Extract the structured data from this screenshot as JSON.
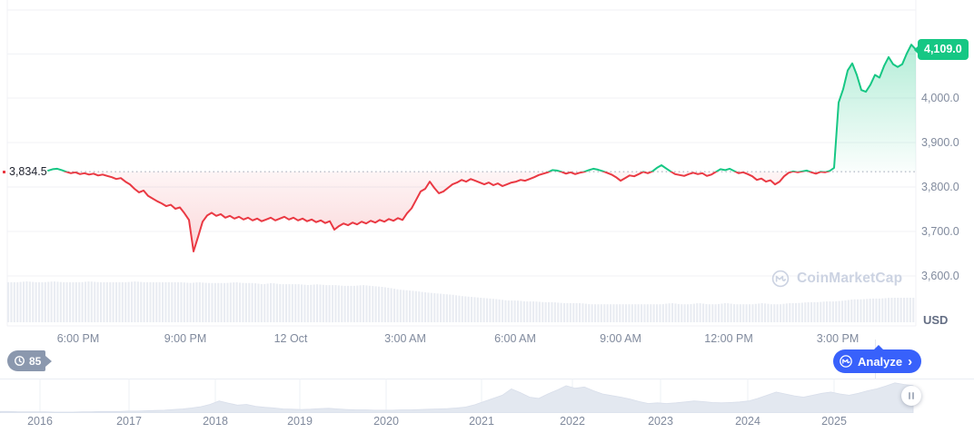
{
  "chart": {
    "baseline_label": "3,834.5",
    "last_price_label": "4,109.0",
    "unit_label": "USD"
  },
  "watermark": {
    "text": "CoinMarketCap"
  },
  "footer": {
    "score": "85",
    "analyze_label": "Analyze",
    "chevron": "›"
  },
  "colors": {
    "up": "#16c784",
    "down": "#ea3943",
    "accent_blue": "#3861fb",
    "axis_text": "#808a9d",
    "grid": "#f0f2f6",
    "volume": "#e9ecf2",
    "mini_area": "#e3e8f0",
    "watermark_text": "#ccd3e2",
    "score_badge": "#8b98ae",
    "baseline_dotted": "#9aa3b4"
  },
  "chart_data": {
    "type": "line",
    "quote_currency": "USD",
    "baseline": 3834.5,
    "last_price": 4109.0,
    "grid": true,
    "y_axis": {
      "tick_values": [
        4000.0,
        3900.0,
        3800.0,
        3700.0,
        3600.0
      ],
      "tick_labels": [
        "4,000.0",
        "3,900.0",
        "3,800.0",
        "3,700.0",
        "3,600.0"
      ],
      "implied_range": [
        3480,
        4220
      ]
    },
    "x_axis": {
      "tick_labels": [
        "6:00 PM",
        "9:00 PM",
        "12 Oct",
        "3:00 AM",
        "6:00 AM",
        "9:00 AM",
        "12:00 PM",
        "3:00 PM"
      ]
    },
    "price_series": [
      3837,
      3840,
      3841,
      3838,
      3834,
      3831,
      3833,
      3829,
      3831,
      3828,
      3830,
      3826,
      3828,
      3825,
      3822,
      3818,
      3820,
      3812,
      3806,
      3796,
      3788,
      3792,
      3780,
      3774,
      3768,
      3763,
      3757,
      3760,
      3751,
      3754,
      3741,
      3726,
      3655,
      3688,
      3722,
      3736,
      3742,
      3735,
      3739,
      3731,
      3735,
      3729,
      3733,
      3727,
      3731,
      3725,
      3729,
      3723,
      3727,
      3731,
      3725,
      3729,
      3733,
      3727,
      3731,
      3725,
      3729,
      3723,
      3727,
      3721,
      3725,
      3719,
      3723,
      3704,
      3712,
      3718,
      3714,
      3720,
      3716,
      3722,
      3718,
      3724,
      3720,
      3726,
      3722,
      3728,
      3724,
      3730,
      3726,
      3741,
      3752,
      3771,
      3790,
      3796,
      3812,
      3798,
      3786,
      3790,
      3798,
      3806,
      3810,
      3816,
      3812,
      3818,
      3814,
      3810,
      3806,
      3810,
      3804,
      3808,
      3802,
      3806,
      3810,
      3812,
      3816,
      3814,
      3818,
      3822,
      3827,
      3830,
      3833,
      3838,
      3837,
      3834,
      3830,
      3833,
      3829,
      3832,
      3834,
      3838,
      3841,
      3839,
      3836,
      3832,
      3828,
      3822,
      3814,
      3820,
      3826,
      3824,
      3829,
      3834,
      3831,
      3835,
      3843,
      3849,
      3842,
      3835,
      3829,
      3827,
      3825,
      3829,
      3832,
      3829,
      3831,
      3825,
      3828,
      3834,
      3840,
      3838,
      3841,
      3836,
      3831,
      3833,
      3829,
      3824,
      3816,
      3819,
      3812,
      3815,
      3806,
      3812,
      3824,
      3832,
      3835,
      3833,
      3835,
      3837,
      3833,
      3830,
      3834,
      3833,
      3836,
      3843,
      3990,
      4020,
      4062,
      4078,
      4052,
      4018,
      4014,
      4030,
      4052,
      4046,
      4072,
      4092,
      4076,
      4070,
      4076,
      4100,
      4120,
      4109
    ],
    "volume_series_relative": [
      0.98,
      0.98,
      1,
      0.98,
      0.98,
      1,
      0.98,
      0.98,
      0.98,
      1,
      0.98,
      0.98,
      0.98,
      0.98,
      1,
      0.98,
      0.98,
      0.98,
      0.98,
      0.98,
      0.96,
      0.98,
      0.96,
      0.96,
      0.96,
      0.98,
      0.96,
      0.96,
      0.93,
      0.96,
      0.93,
      0.93,
      0.93,
      0.91,
      0.93,
      0.91,
      0.91,
      0.89,
      0.89,
      0.91,
      0.89,
      0.87,
      0.84,
      0.8,
      0.78,
      0.76,
      0.73,
      0.71,
      0.69,
      0.67,
      0.64,
      0.62,
      0.6,
      0.58,
      0.56,
      0.53,
      0.53,
      0.51,
      0.51,
      0.49,
      0.49,
      0.47,
      0.47,
      0.47,
      0.44,
      0.44,
      0.44,
      0.44,
      0.44,
      0.44,
      0.44,
      0.44,
      0.44,
      0.47,
      0.44,
      0.44,
      0.47,
      0.44,
      0.44,
      0.47,
      0.44,
      0.44,
      0.44,
      0.47,
      0.44,
      0.44,
      0.47,
      0.47,
      0.49,
      0.49,
      0.51,
      0.51,
      0.53,
      0.56,
      0.56,
      0.58,
      0.58,
      0.6,
      0.6,
      0.6,
      0.6
    ],
    "mini_chart": {
      "year_labels": [
        "2016",
        "2017",
        "2018",
        "2019",
        "2020",
        "2021",
        "2022",
        "2023",
        "2024",
        "2025"
      ],
      "values_relative": [
        0.05,
        0.05,
        0.04,
        0.04,
        0.04,
        0.04,
        0.03,
        0.03,
        0.03,
        0.04,
        0.04,
        0.05,
        0.05,
        0.05,
        0.06,
        0.06,
        0.07,
        0.08,
        0.09,
        0.11,
        0.13,
        0.16,
        0.2,
        0.27,
        0.38,
        0.31,
        0.25,
        0.27,
        0.21,
        0.18,
        0.16,
        0.13,
        0.12,
        0.11,
        0.12,
        0.14,
        0.15,
        0.13,
        0.11,
        0.1,
        0.1,
        0.09,
        0.09,
        0.09,
        0.1,
        0.1,
        0.11,
        0.12,
        0.13,
        0.14,
        0.16,
        0.19,
        0.26,
        0.36,
        0.46,
        0.56,
        0.76,
        0.64,
        0.5,
        0.46,
        0.6,
        0.72,
        0.86,
        0.78,
        0.82,
        0.7,
        0.6,
        0.55,
        0.5,
        0.44,
        0.36,
        0.3,
        0.32,
        0.3,
        0.32,
        0.35,
        0.38,
        0.36,
        0.33,
        0.32,
        0.33,
        0.35,
        0.38,
        0.46,
        0.56,
        0.66,
        0.6,
        0.54,
        0.5,
        0.56,
        0.62,
        0.66,
        0.6,
        0.56,
        0.62,
        0.7,
        0.76,
        0.85,
        0.95,
        0.9,
        0.86
      ]
    }
  }
}
